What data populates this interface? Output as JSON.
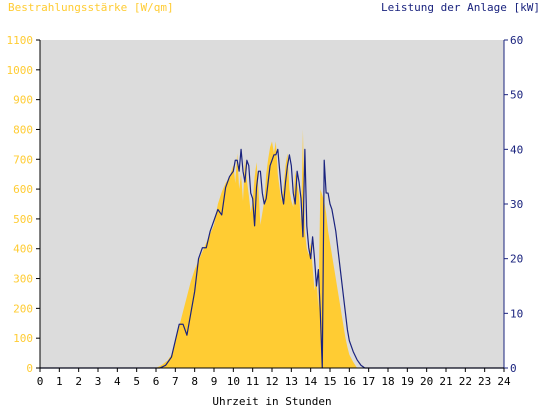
{
  "chart_data": {
    "type": "area",
    "title_left": "Bestrahlungsstärke [W/qm]",
    "title_right": "Leistung der Anlage [kW]",
    "xlabel": "Uhrzeit in Stunden",
    "x_ticks": [
      "0",
      "1",
      "2",
      "3",
      "4",
      "5",
      "6",
      "7",
      "8",
      "9",
      "10",
      "11",
      "12",
      "13",
      "14",
      "15",
      "16",
      "17",
      "18",
      "19",
      "20",
      "21",
      "22",
      "23",
      "24"
    ],
    "y_left_ticks": [
      "0",
      "100",
      "200",
      "300",
      "400",
      "500",
      "600",
      "700",
      "800",
      "900",
      "1000",
      "1100"
    ],
    "y_right_ticks": [
      "0",
      "10",
      "20",
      "30",
      "40",
      "50",
      "60"
    ],
    "xlim": [
      0,
      24
    ],
    "ylim_left": [
      0,
      1100
    ],
    "ylim_right": [
      0,
      60
    ],
    "grid": false,
    "colors": {
      "plot_bg": "#dcdcdc",
      "irradiance_fill": "#ffcc33",
      "power_line": "#1a237e",
      "left_axis_text": "#ffcc33",
      "right_axis_text": "#1a237e",
      "axis_text": "#000000"
    },
    "series": [
      {
        "name": "Bestrahlungsstärke",
        "unit": "W/qm",
        "axis": "left",
        "style": "area",
        "x": [
          0,
          6.0,
          6.3,
          6.6,
          6.8,
          7.0,
          7.2,
          7.4,
          7.6,
          7.8,
          8.0,
          8.2,
          8.4,
          8.6,
          8.8,
          9.0,
          9.2,
          9.4,
          9.6,
          9.8,
          10.0,
          10.1,
          10.2,
          10.3,
          10.4,
          10.5,
          10.6,
          10.7,
          10.8,
          10.9,
          11.0,
          11.1,
          11.2,
          11.3,
          11.4,
          11.5,
          11.6,
          11.7,
          11.8,
          11.9,
          12.0,
          12.1,
          12.2,
          12.3,
          12.4,
          12.5,
          12.6,
          12.7,
          12.8,
          12.9,
          13.0,
          13.1,
          13.2,
          13.3,
          13.4,
          13.5,
          13.6,
          13.7,
          13.8,
          13.9,
          14.0,
          14.1,
          14.2,
          14.3,
          14.4,
          14.5,
          14.6,
          14.7,
          14.8,
          14.9,
          15.0,
          15.1,
          15.2,
          15.3,
          15.4,
          15.5,
          15.6,
          15.7,
          15.8,
          15.9,
          16.0,
          16.2,
          16.4,
          16.6,
          16.8,
          17.0,
          17.2,
          17.4,
          17.6,
          17.8,
          18.0,
          18.2,
          18.4,
          18.6,
          18.8,
          19.0,
          24
        ],
        "values": [
          0,
          0,
          10,
          25,
          45,
          90,
          140,
          190,
          240,
          290,
          330,
          360,
          390,
          420,
          450,
          480,
          550,
          590,
          620,
          640,
          680,
          620,
          720,
          600,
          650,
          560,
          700,
          630,
          580,
          520,
          560,
          640,
          690,
          600,
          480,
          520,
          560,
          650,
          700,
          740,
          760,
          720,
          760,
          650,
          600,
          560,
          610,
          680,
          720,
          600,
          560,
          540,
          660,
          620,
          580,
          480,
          800,
          460,
          400,
          380,
          420,
          340,
          260,
          300,
          200,
          600,
          580,
          560,
          520,
          460,
          420,
          380,
          340,
          300,
          260,
          220,
          180,
          140,
          100,
          70,
          45,
          20,
          0,
          0,
          0,
          0,
          0,
          0,
          0,
          0,
          0,
          0,
          0,
          0,
          0,
          0,
          0
        ]
      },
      {
        "name": "Leistung der Anlage",
        "unit": "kW",
        "axis": "right",
        "style": "line",
        "x": [
          0,
          6.2,
          6.5,
          6.8,
          7.0,
          7.2,
          7.4,
          7.6,
          7.8,
          8.0,
          8.2,
          8.4,
          8.6,
          8.8,
          9.0,
          9.2,
          9.4,
          9.6,
          9.8,
          10.0,
          10.1,
          10.2,
          10.3,
          10.4,
          10.5,
          10.6,
          10.7,
          10.8,
          10.9,
          11.0,
          11.1,
          11.2,
          11.3,
          11.4,
          11.5,
          11.6,
          11.7,
          11.8,
          11.9,
          12.0,
          12.1,
          12.2,
          12.3,
          12.4,
          12.5,
          12.6,
          12.7,
          12.8,
          12.9,
          13.0,
          13.1,
          13.2,
          13.3,
          13.4,
          13.5,
          13.6,
          13.7,
          13.8,
          13.9,
          14.0,
          14.1,
          14.2,
          14.3,
          14.4,
          14.5,
          14.6,
          14.7,
          14.8,
          14.9,
          15.0,
          15.1,
          15.2,
          15.3,
          15.4,
          15.5,
          15.6,
          15.7,
          15.8,
          15.9,
          16.0,
          16.2,
          16.4,
          16.6,
          16.8,
          17.0,
          17.2,
          17.4,
          17.6,
          17.8,
          18.0,
          18.2,
          18.4,
          18.6,
          18.8,
          19.0,
          24
        ],
        "values": [
          0,
          0,
          0.5,
          2,
          5,
          8,
          8,
          6,
          10,
          14,
          20,
          22,
          22,
          25,
          27,
          29,
          28,
          33,
          35,
          36,
          38,
          38,
          36,
          40,
          36,
          34,
          38,
          37,
          32,
          31,
          26,
          33,
          36,
          36,
          32,
          30,
          31,
          34,
          37,
          38,
          39,
          39,
          40,
          36,
          32,
          30,
          34,
          37,
          39,
          37,
          32,
          30,
          36,
          34,
          31,
          24,
          40,
          26,
          22,
          20,
          24,
          20,
          15,
          18,
          10,
          0,
          38,
          32,
          32,
          30,
          29,
          27,
          25,
          22,
          19,
          16,
          13,
          10,
          7,
          5,
          3,
          1.5,
          0.5,
          0,
          0,
          0,
          0,
          0,
          0,
          0,
          0,
          0,
          0,
          0,
          0,
          0
        ]
      }
    ]
  }
}
